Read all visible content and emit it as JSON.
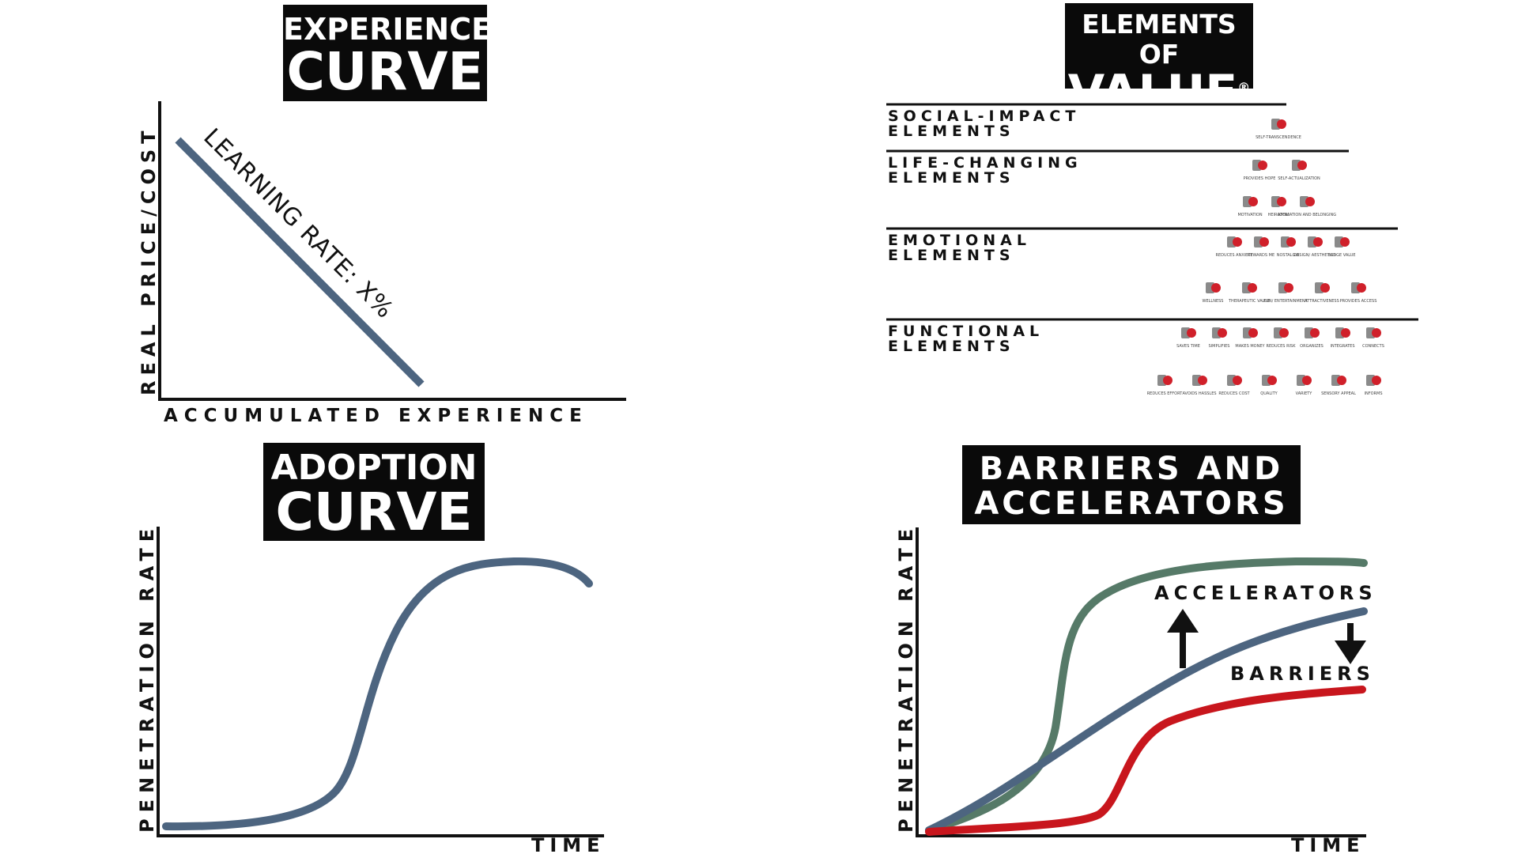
{
  "experience_curve": {
    "title_line1": "EXPERIENCE",
    "title_line2": "CURVE",
    "y_label": "REAL PRICE/COST",
    "x_label": "ACCUMULATED EXPERIENCE",
    "line_label": "LEARNING RATE: X%",
    "line_color": "#4d6580"
  },
  "elements_of_value": {
    "title_line1": "ELEMENTS OF",
    "title_line2": "VALUE",
    "registered": "®",
    "tiers": [
      {
        "line1": "SOCIAL-IMPACT",
        "line2": "ELEMENTS"
      },
      {
        "line1": "LIFE-CHANGING",
        "line2": "ELEMENTS"
      },
      {
        "line1": "EMOTIONAL",
        "line2": "ELEMENTS"
      },
      {
        "line1": "FUNCTIONAL",
        "line2": "ELEMENTS"
      }
    ],
    "social_impact": [
      {
        "label": "SELF-TRANSCENDENCE",
        "icon": "self-transcendence-icon"
      }
    ],
    "life_changing_row1": [
      {
        "label": "PROVIDES HOPE",
        "icon": "dove-icon"
      },
      {
        "label": "SELF-ACTUALIZATION",
        "icon": "mountain-climber-icon"
      }
    ],
    "life_changing_row2": [
      {
        "label": "MOTIVATION",
        "icon": "motivation-icon"
      },
      {
        "label": "HEIRLOOM",
        "icon": "diamond-icon"
      },
      {
        "label": "AFFILIATION AND BELONGING",
        "icon": "affiliation-icon"
      }
    ],
    "emotional_row1": [
      {
        "label": "REDUCES ANXIETY",
        "icon": "reduces-anxiety-icon"
      },
      {
        "label": "REWARDS ME",
        "icon": "gift-icon"
      },
      {
        "label": "NOSTALGIA",
        "icon": "nostalgia-icon"
      },
      {
        "label": "DESIGN/ AESTHETICS",
        "icon": "design-icon"
      },
      {
        "label": "BADGE VALUE",
        "icon": "badge-value-icon"
      }
    ],
    "emotional_row2": [
      {
        "label": "WELLNESS",
        "icon": "heart-icon"
      },
      {
        "label": "THERAPEUTIC VALUE",
        "icon": "leaf-icon"
      },
      {
        "label": "FUN/ ENTERTAINMENT",
        "icon": "speech-bubbles-icon"
      },
      {
        "label": "ATTRACTIVENESS",
        "icon": "magnet-icon"
      },
      {
        "label": "PROVIDES ACCESS",
        "icon": "door-icon"
      }
    ],
    "functional_row1": [
      {
        "label": "SAVES TIME",
        "icon": "hourglass-icon"
      },
      {
        "label": "SIMPLIFIES",
        "icon": "simplifies-icon"
      },
      {
        "label": "MAKES MONEY",
        "icon": "money-icon"
      },
      {
        "label": "REDUCES RISK",
        "icon": "reduces-risk-icon"
      },
      {
        "label": "ORGANIZES",
        "icon": "folder-icon"
      },
      {
        "label": "INTEGRATES",
        "icon": "puzzle-icon"
      },
      {
        "label": "CONNECTS",
        "icon": "network-icon"
      }
    ],
    "functional_row2": [
      {
        "label": "REDUCES EFFORT",
        "icon": "reduces-effort-icon"
      },
      {
        "label": "AVOIDS HASSLES",
        "icon": "avoids-hassles-icon"
      },
      {
        "label": "REDUCES COST",
        "icon": "reduces-cost-icon"
      },
      {
        "label": "QUALITY",
        "icon": "quality-check-icon"
      },
      {
        "label": "VARIETY",
        "icon": "variety-icon"
      },
      {
        "label": "SENSORY APPEAL",
        "icon": "sensory-appeal-icon"
      },
      {
        "label": "INFORMS",
        "icon": "info-icon"
      }
    ],
    "accent_color": "#d0202a",
    "icon_gray": "#8a8a8a"
  },
  "adoption_curve": {
    "title_line1": "ADOPTION",
    "title_line2": "CURVE",
    "y_label": "PENETRATION RATE",
    "x_label": "TIME",
    "line_color": "#4d6580"
  },
  "barriers_accelerators": {
    "title_line1": "BARRIERS AND",
    "title_line2": "ACCELERATORS",
    "y_label": "PENETRATION RATE",
    "x_label": "TIME",
    "accelerators_label": "ACCELERATORS",
    "barriers_label": "BARRIERS",
    "colors": {
      "accelerated": "#567a68",
      "base": "#4d6580",
      "barriers": "#c8161d"
    }
  }
}
